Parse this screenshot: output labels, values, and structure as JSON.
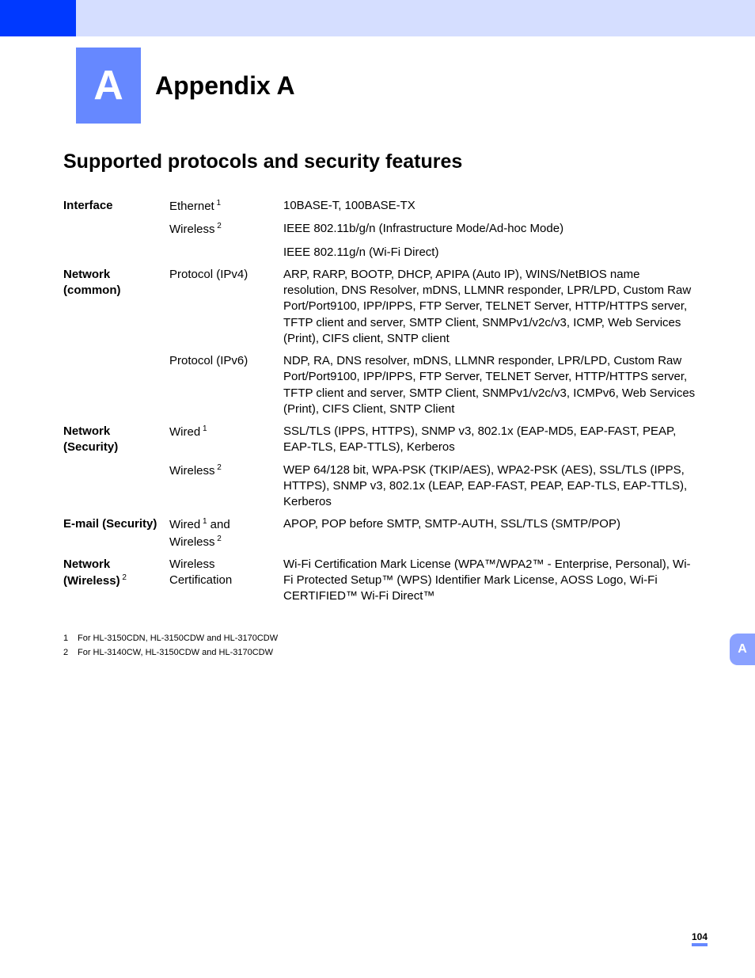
{
  "colors": {
    "header_band": "#d5deff",
    "header_accent": "#0039ff",
    "badge_bg": "#6688ff",
    "badge_fg": "#ffffff",
    "sidetab_bg": "#8aa1ff",
    "sidetab_fg": "#ffffff",
    "pagenum_underline": "#6688ff",
    "text": "#000000",
    "background": "#ffffff"
  },
  "header": {
    "badge_letter": "A",
    "title": "Appendix A"
  },
  "section_title": "Supported protocols and security features",
  "table": {
    "columns": [
      "category",
      "subcategory",
      "value"
    ],
    "rows": [
      {
        "c1": "Interface",
        "c2": "Ethernet",
        "c2_sup": "1",
        "c3": "10BASE-T, 100BASE-TX"
      },
      {
        "c1": "",
        "c2": "Wireless",
        "c2_sup": "2",
        "c3": "IEEE 802.11b/g/n (Infrastructure Mode/Ad-hoc Mode)"
      },
      {
        "c1": "",
        "c2": "",
        "c3": "IEEE 802.11g/n (Wi-Fi Direct)"
      },
      {
        "c1": "Network (common)",
        "c2": "Protocol (IPv4)",
        "c3": "ARP, RARP, BOOTP, DHCP, APIPA (Auto IP), WINS/NetBIOS name resolution, DNS Resolver, mDNS, LLMNR responder, LPR/LPD, Custom Raw Port/Port9100, IPP/IPPS, FTP Server, TELNET Server, HTTP/HTTPS server, TFTP client and server, SMTP Client, SNMPv1/v2c/v3, ICMP, Web Services (Print), CIFS client, SNTP client"
      },
      {
        "c1": "",
        "c2": "Protocol (IPv6)",
        "c3": "NDP, RA, DNS resolver, mDNS, LLMNR responder, LPR/LPD, Custom Raw Port/Port9100, IPP/IPPS, FTP Server, TELNET Server, HTTP/HTTPS server, TFTP client and server, SMTP Client, SNMPv1/v2c/v3, ICMPv6, Web Services (Print), CIFS Client, SNTP Client"
      },
      {
        "c1": "Network (Security)",
        "c2": "Wired",
        "c2_sup": "1",
        "c3": "SSL/TLS (IPPS, HTTPS), SNMP v3, 802.1x (EAP-MD5, EAP-FAST, PEAP, EAP-TLS, EAP-TTLS), Kerberos"
      },
      {
        "c1": "",
        "c2": "Wireless",
        "c2_sup": "2",
        "c3": "WEP 64/128 bit, WPA-PSK (TKIP/AES), WPA2-PSK (AES), SSL/TLS (IPPS, HTTPS), SNMP v3, 802.1x (LEAP, EAP-FAST, PEAP, EAP-TLS, EAP-TTLS), Kerberos"
      },
      {
        "c1": "E-mail (Security)",
        "c2_parts": [
          {
            "text": "Wired",
            "sup": "1"
          },
          {
            "text": " and Wireless",
            "sup": "2"
          }
        ],
        "c3": "APOP, POP before SMTP, SMTP-AUTH, SSL/TLS (SMTP/POP)"
      },
      {
        "c1": "Network (Wireless)",
        "c1_sup": "2",
        "c2": "Wireless Certification",
        "c3": "Wi-Fi Certification Mark License (WPA™/WPA2™ - Enterprise, Personal), Wi-Fi Protected Setup™ (WPS) Identifier Mark License, AOSS Logo, Wi-Fi CERTIFIED™ Wi-Fi Direct™"
      }
    ]
  },
  "footnotes": [
    {
      "num": "1",
      "text": "For HL-3150CDN, HL-3150CDW and HL-3170CDW"
    },
    {
      "num": "2",
      "text": "For HL-3140CW, HL-3150CDW and HL-3170CDW"
    }
  ],
  "sidetab": "A",
  "page_number": "104"
}
